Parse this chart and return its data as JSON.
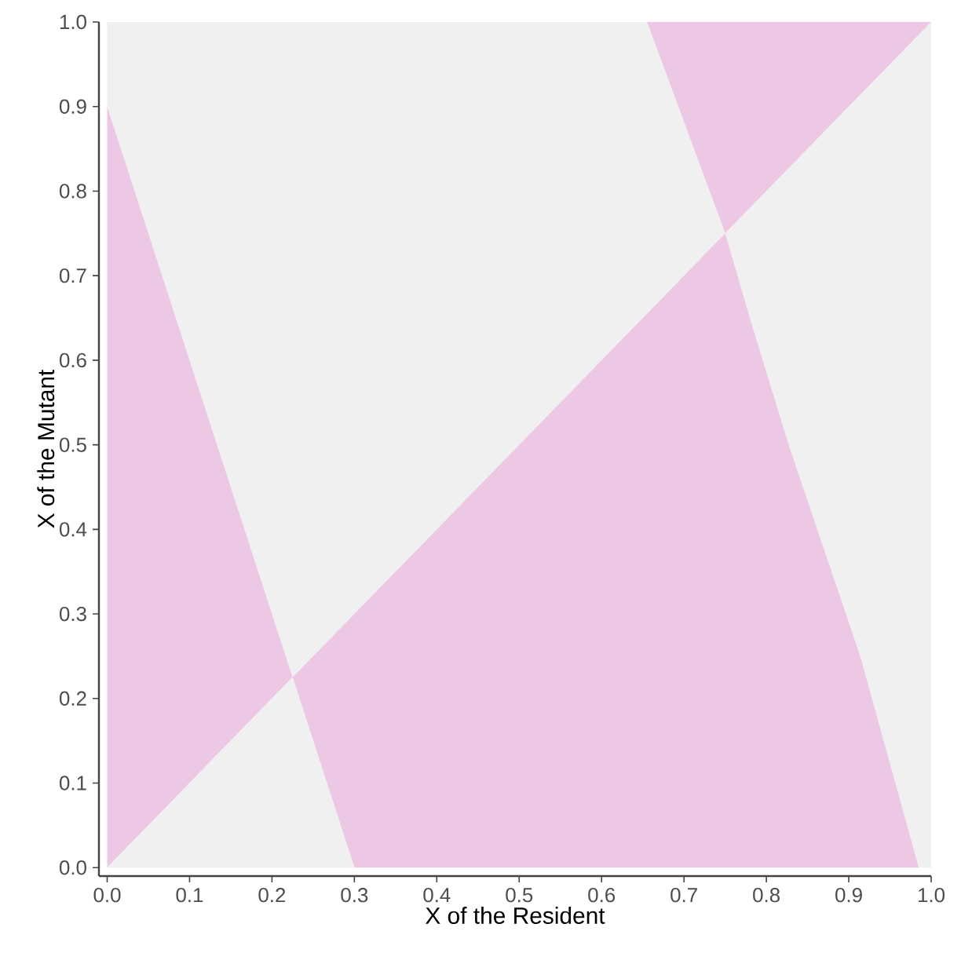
{
  "chart_data": {
    "type": "area",
    "stacked": true,
    "xlabel": "X of the Resident",
    "ylabel": "X of the Mutant",
    "xlim": [
      -0.01,
      1.0
    ],
    "ylim": [
      -0.01,
      1.0
    ],
    "xticks": [
      {
        "value": 0,
        "label": "0.0"
      },
      {
        "value": 0.1,
        "label": "0.1"
      },
      {
        "value": 0.2,
        "label": "0.2"
      },
      {
        "value": 0.3,
        "label": "0.3"
      },
      {
        "value": 0.4,
        "label": "0.4"
      },
      {
        "value": 0.5,
        "label": "0.5"
      },
      {
        "value": 0.6,
        "label": "0.6"
      },
      {
        "value": 0.7,
        "label": "0.7"
      },
      {
        "value": 0.8,
        "label": "0.8"
      },
      {
        "value": 0.9,
        "label": "0.9"
      },
      {
        "value": 1.0,
        "label": "1.0"
      }
    ],
    "yticks": [
      {
        "value": 0,
        "label": "0.0"
      },
      {
        "value": 0.1,
        "label": "0.1"
      },
      {
        "value": 0.2,
        "label": "0.2"
      },
      {
        "value": 0.3,
        "label": "0.3"
      },
      {
        "value": 0.4,
        "label": "0.4"
      },
      {
        "value": 0.5,
        "label": "0.5"
      },
      {
        "value": 0.6,
        "label": "0.6"
      },
      {
        "value": 0.7,
        "label": "0.7"
      },
      {
        "value": 0.8,
        "label": "0.8"
      },
      {
        "value": 0.9,
        "label": "0.9"
      },
      {
        "value": 1.0,
        "label": "1.0"
      }
    ],
    "x": [
      0,
      0.225,
      0.3,
      0.655,
      0.75,
      0.78,
      0.827,
      0.914,
      0.985,
      1.0
    ],
    "series": [
      {
        "color": "#f0f0f0",
        "values": [
          0,
          0.225,
          0,
          0,
          0,
          0,
          0,
          0,
          0,
          0
        ]
      },
      {
        "color": "#ecc8e4",
        "values": [
          0.9,
          0,
          0.3,
          0.655,
          0.75,
          0.65,
          0.5,
          0.25,
          0,
          0
        ]
      },
      {
        "color": "#f0f0f0",
        "values": [
          0.1,
          0.775,
          0.7,
          0.345,
          0,
          0.13,
          0.327,
          0.664,
          0.985,
          1.0
        ]
      },
      {
        "color": "#ecc8e4",
        "values": [
          0,
          0,
          0,
          0,
          0.25,
          0.22,
          0.173,
          0.086,
          0.015,
          0
        ]
      }
    ]
  }
}
